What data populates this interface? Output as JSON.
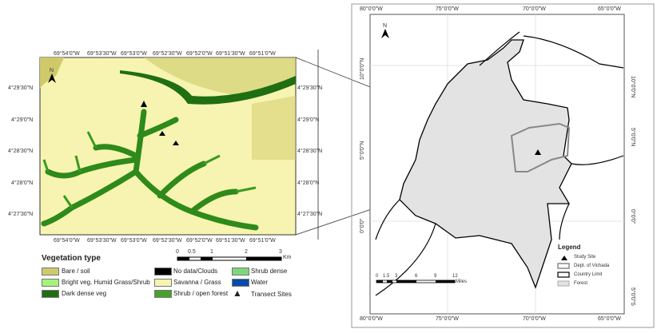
{
  "left_map": {
    "x_ticks": [
      "69°54'0\"W",
      "69°53'30\"W",
      "69°53'0\"W",
      "69°52'30\"W",
      "69°52'0\"W",
      "69°51'30\"W",
      "69°51'0\"W"
    ],
    "y_ticks": [
      "4°29'30\"N",
      "4°29'0\"N",
      "4°28'30\"N",
      "4°28'0\"N",
      "4°27'30\"N"
    ],
    "north": "N",
    "scale": {
      "labels": [
        "0",
        "0.5",
        "1",
        "2",
        "3"
      ],
      "unit": "Km"
    }
  },
  "legend": {
    "title": "Vegetation type",
    "items": [
      {
        "label": "Bare / soil",
        "color": "#cfc96a"
      },
      {
        "label": "Bright veg. Humid Grass/Shrub",
        "color": "#a6f27a"
      },
      {
        "label": "Dark dense veg",
        "color": "#1f6e12"
      },
      {
        "label": "No data/Clouds",
        "color": "#000000"
      },
      {
        "label": "Savanna / Grass",
        "color": "#f6f4b0"
      },
      {
        "label": "Shrub / open forest",
        "color": "#4aa02c"
      },
      {
        "label": "Shrub dense",
        "color": "#7fd67a"
      },
      {
        "label": "Water",
        "color": "#0a4aa8"
      },
      {
        "label": "Transect Sites",
        "color": "#000000"
      }
    ]
  },
  "right_map": {
    "x_ticks": [
      "80°0'0\"W",
      "75°0'0\"W",
      "70°0'0\"W",
      "65°0'0\"W"
    ],
    "y_ticks": [
      "10°0'0\"N",
      "5°0'0\"N",
      "0°0'0\"",
      "5°0'0\"S"
    ],
    "north": "N",
    "scale": {
      "labels": [
        "0",
        "1.5",
        "3",
        "6",
        "9",
        "12"
      ],
      "unit": "Miles"
    },
    "legend": {
      "title": "Legend",
      "items": [
        "Study Site",
        "Dept. of Vichada",
        "Country Limit",
        "Forest"
      ]
    }
  }
}
